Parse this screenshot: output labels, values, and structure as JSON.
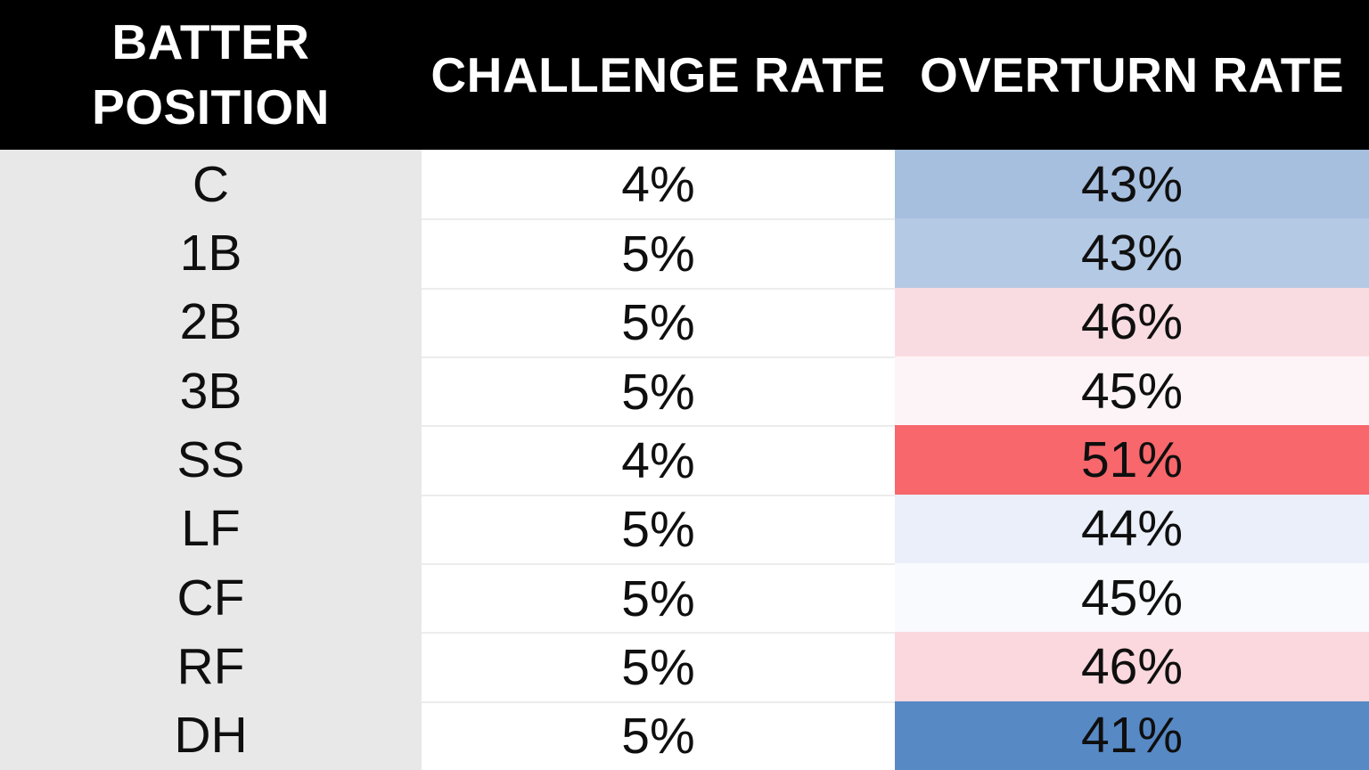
{
  "table": {
    "headers": {
      "position": "BATTER POSITION",
      "challenge": "CHALLENGE RATE",
      "overturn": "OVERTURN RATE"
    },
    "rows": [
      {
        "position": "C",
        "challenge": "4%",
        "overturn": "43%",
        "overturn_bg": "#a6bfdf"
      },
      {
        "position": "1B",
        "challenge": "5%",
        "overturn": "43%",
        "overturn_bg": "#b4c9e4"
      },
      {
        "position": "2B",
        "challenge": "5%",
        "overturn": "46%",
        "overturn_bg": "#f9dce1"
      },
      {
        "position": "3B",
        "challenge": "5%",
        "overturn": "45%",
        "overturn_bg": "#fdf4f7"
      },
      {
        "position": "SS",
        "challenge": "4%",
        "overturn": "51%",
        "overturn_bg": "#f7676b"
      },
      {
        "position": "LF",
        "challenge": "5%",
        "overturn": "44%",
        "overturn_bg": "#eaeffa"
      },
      {
        "position": "CF",
        "challenge": "5%",
        "overturn": "45%",
        "overturn_bg": "#f9fafd"
      },
      {
        "position": "RF",
        "challenge": "5%",
        "overturn": "46%",
        "overturn_bg": "#fad8dd"
      },
      {
        "position": "DH",
        "challenge": "5%",
        "overturn": "41%",
        "overturn_bg": "#5789c5"
      }
    ]
  },
  "colors": {
    "header_bg": "#000000",
    "header_text": "#ffffff",
    "position_col_bg": "#e8e8e8",
    "challenge_col_bg": "#ffffff",
    "row_separator": "#ececec",
    "data_text": "#0f0f0f",
    "heat_low_blue": "#5789c5",
    "heat_high_red": "#f7676b"
  },
  "chart_data": {
    "type": "table",
    "title": "Challenge rate and overturn rate by batter position",
    "columns": [
      "BATTER POSITION",
      "CHALLENGE RATE",
      "OVERTURN RATE"
    ],
    "categories": [
      "C",
      "1B",
      "2B",
      "3B",
      "SS",
      "LF",
      "CF",
      "RF",
      "DH"
    ],
    "series": [
      {
        "name": "CHALLENGE RATE",
        "values": [
          4,
          5,
          5,
          5,
          4,
          5,
          5,
          5,
          5
        ],
        "unit": "%"
      },
      {
        "name": "OVERTURN RATE",
        "values": [
          43,
          43,
          46,
          45,
          51,
          44,
          45,
          46,
          41
        ],
        "unit": "%"
      }
    ],
    "layout_hints": {
      "overturn_column_heatmap": "blue = low rate, red = high rate",
      "header_style": "black band with white bold text",
      "grid": "light separators in challenge column only"
    }
  }
}
